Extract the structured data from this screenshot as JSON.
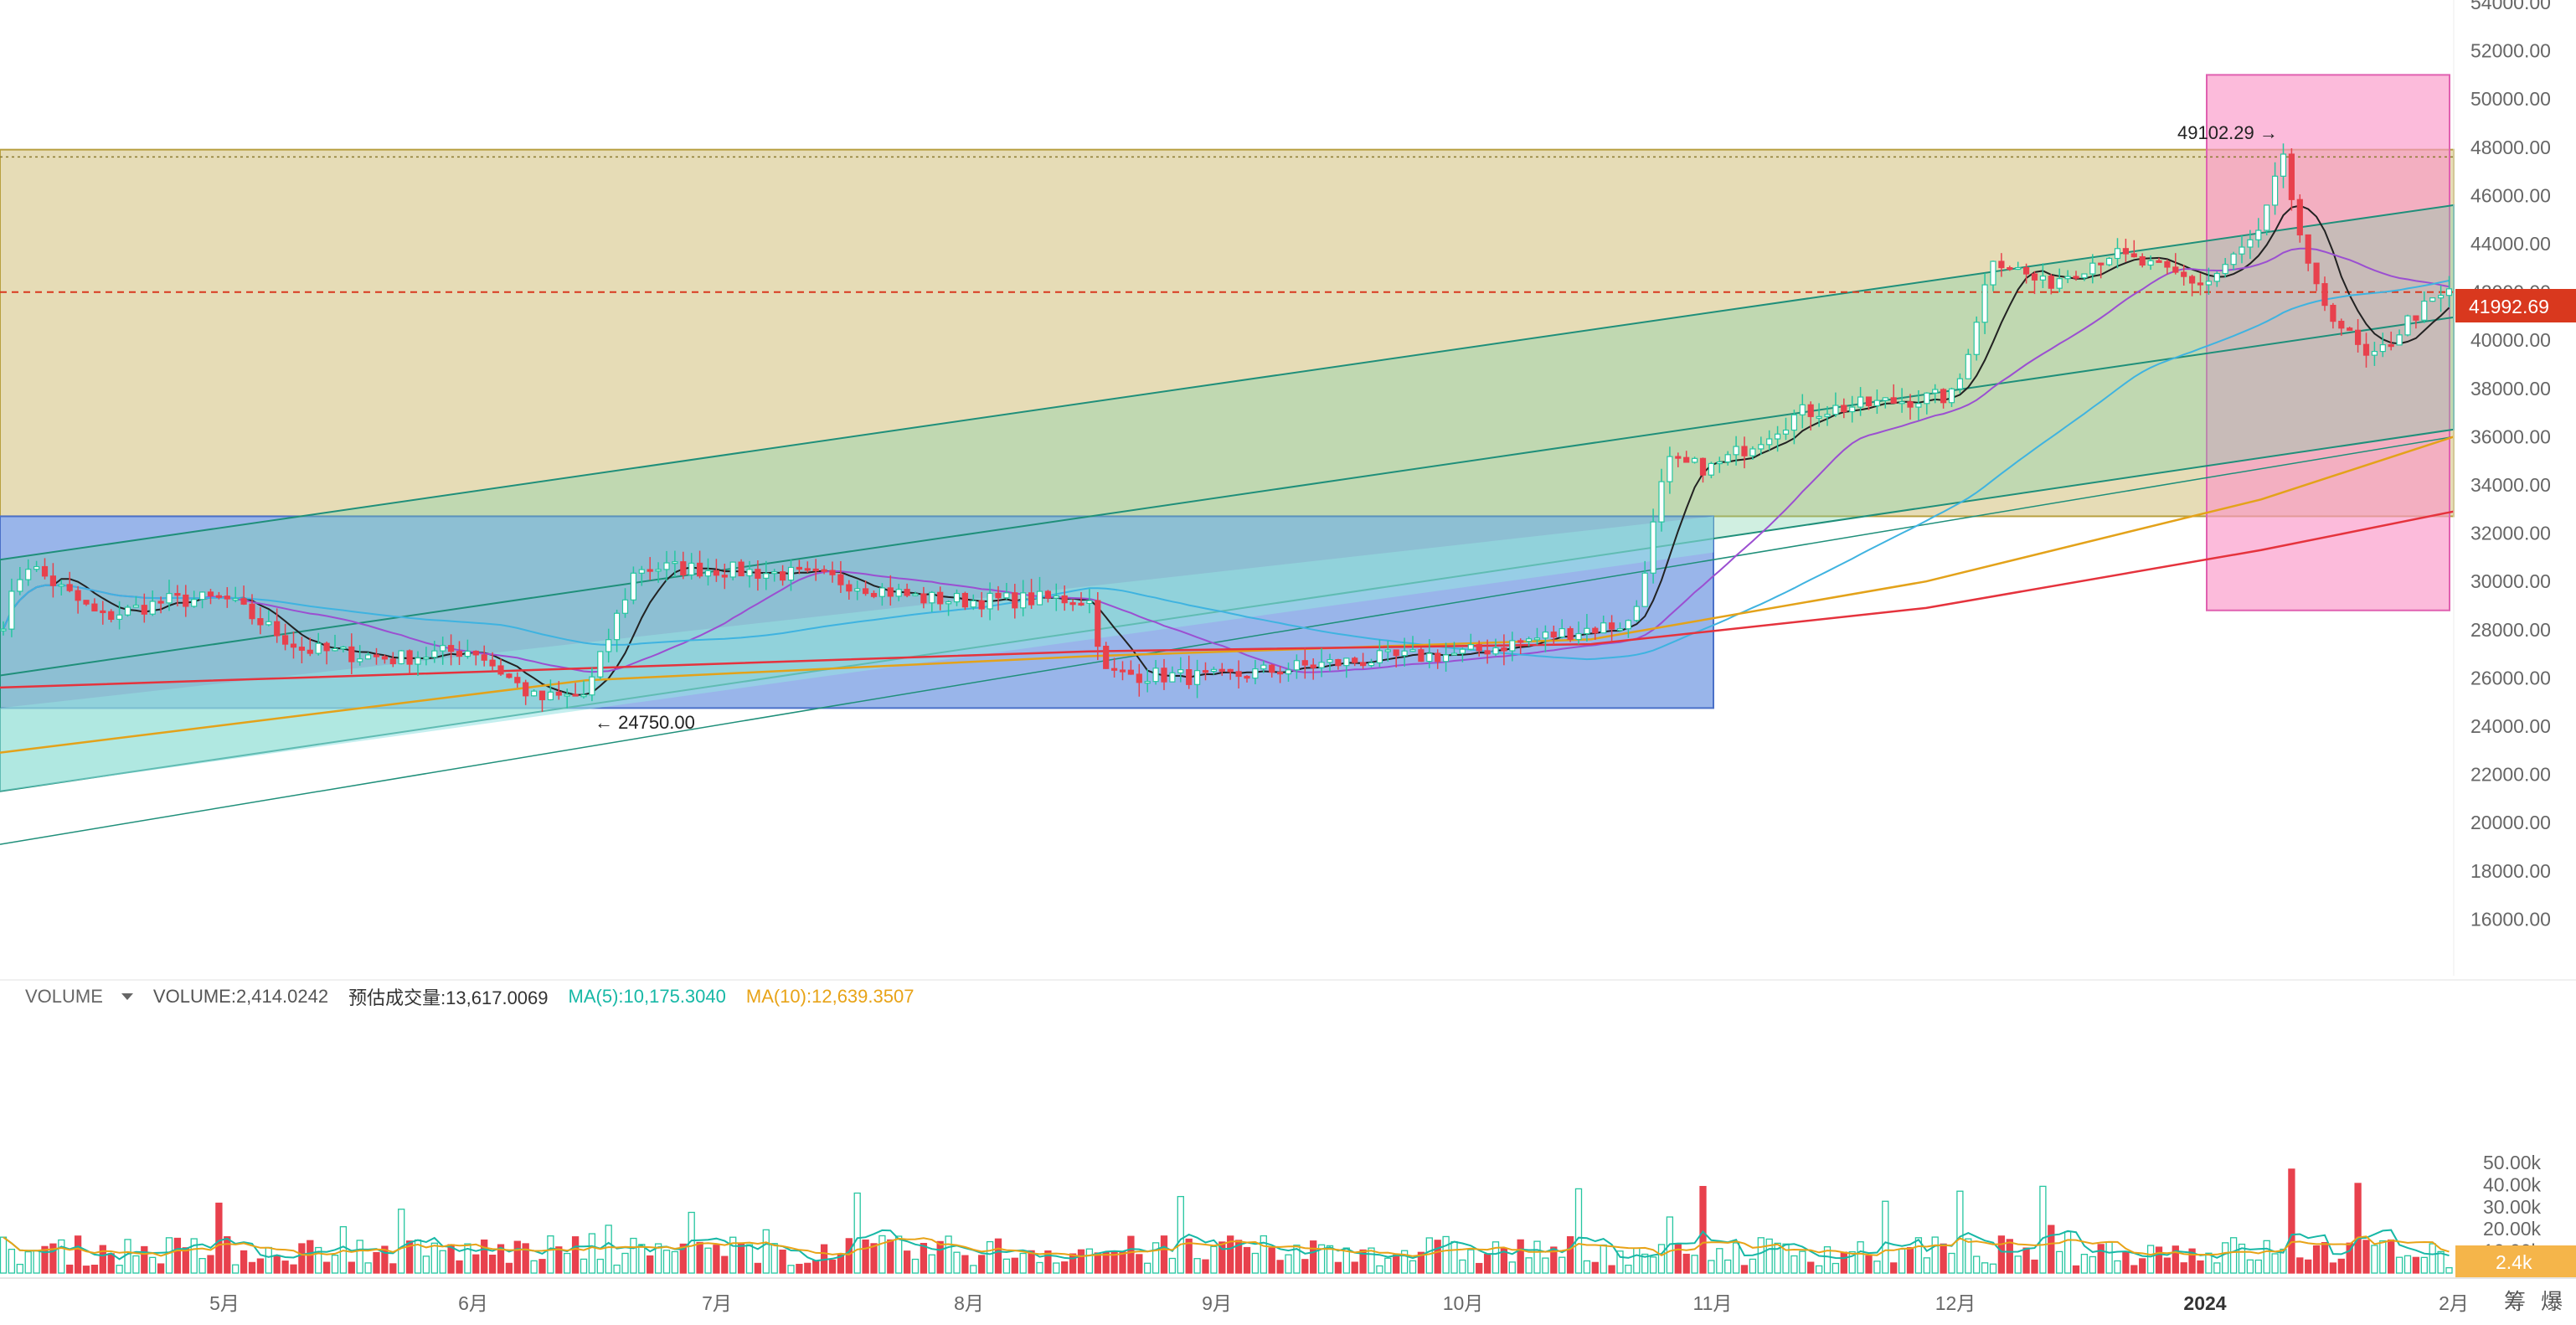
{
  "colors": {
    "up": "#26c6a0",
    "down": "#e8414d",
    "ma_black": "#222222",
    "ma_purple": "#9b4fd1",
    "ma_cyan": "#3fb3e0",
    "ma_orange": "#e3a21a",
    "ma_red": "#e5333d",
    "price_tag": "#d9381e",
    "vol_tag": "#f5b54a",
    "band_tan": "#dccfa0",
    "band_green": "#9fcf93",
    "band_blue": "#7fa8e3",
    "band_cyan": "#a9e6e6",
    "band_pink": "#f5a9d3"
  },
  "price_axis": {
    "ticks": [
      "54000.00",
      "52000.00",
      "50000.00",
      "48000.00",
      "46000.00",
      "44000.00",
      "42000.00",
      "40000.00",
      "38000.00",
      "36000.00",
      "34000.00",
      "32000.00",
      "30000.00",
      "28000.00",
      "26000.00",
      "24000.00",
      "22000.00",
      "20000.00",
      "18000.00",
      "16000.00"
    ],
    "current_price": "41992.69"
  },
  "volume_axis": {
    "ticks": [
      "50.00k",
      "40.00k",
      "30.00k",
      "20.00k",
      "10.00k"
    ],
    "current_volume": "2.4k"
  },
  "x_axis": {
    "labels": [
      "5月",
      "6月",
      "7月",
      "8月",
      "9月",
      "10月",
      "11月",
      "12月",
      "2024",
      "2月"
    ]
  },
  "annotations": {
    "high": "49102.29 →",
    "low": "← 24750.00"
  },
  "legend": {
    "indicator": "VOLUME",
    "volume": "VOLUME:2,414.0242",
    "estimated": "预估成交量:13,617.0069",
    "ma5": "MA(5):10,175.3040",
    "ma10": "MA(10):12,639.3507"
  },
  "corner_icons": {
    "chip": "筹",
    "liquidation": "爆"
  },
  "chart_data": {
    "type": "candlestick",
    "symbol_price_range": [
      14000,
      55000
    ],
    "last_price": 41992.69,
    "high_marker": 49102.29,
    "low_marker": 24750.0,
    "months": [
      "5月",
      "6月",
      "7月",
      "8月",
      "9月",
      "10月",
      "11月",
      "12月",
      "2024",
      "2月"
    ],
    "monthly_close_approx": [
      29300,
      27200,
      30500,
      29200,
      26000,
      27000,
      34700,
      37700,
      42300,
      42500
    ],
    "ma_series": [
      "MA short",
      "MA medium",
      "MA long",
      "MA 200",
      "MA 365"
    ],
    "volume": {
      "last": 2414.0242,
      "estimated": 13617.0069,
      "ma5": 10175.304,
      "ma10": 12639.3507,
      "ylim": [
        0,
        52000
      ]
    },
    "zones": [
      {
        "type": "rectangle",
        "from": "start",
        "to": "end",
        "low": 32700,
        "high": 47900
      },
      {
        "type": "rectangle",
        "from": "start",
        "to": "11月",
        "low": 24750,
        "high": 32700
      },
      {
        "type": "rectangle",
        "from": "2024",
        "to": "2月",
        "low": 28800,
        "high": 51000
      },
      {
        "type": "channel",
        "lower_start": 21300,
        "lower_end": 36300,
        "upper_start": 30900,
        "upper_end": 45600
      }
    ]
  }
}
